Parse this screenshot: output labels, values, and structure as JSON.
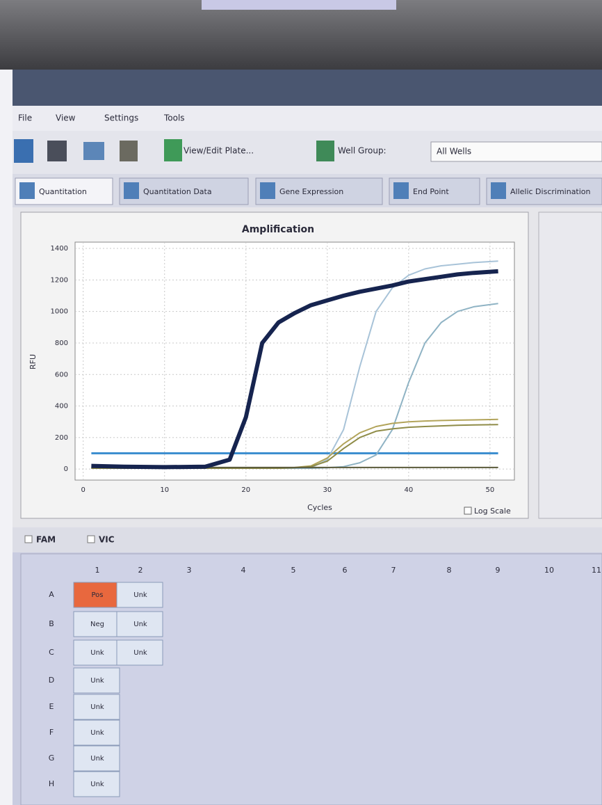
{
  "menu": [
    "File",
    "View",
    "Settings",
    "Tools"
  ],
  "toolbar": {
    "plate_button": "View/Edit Plate...",
    "well_group_label": "Well Group:",
    "well_group_value": "All Wells"
  },
  "tabs": [
    "Quantitation",
    "Quantitation Data",
    "Gene Expression",
    "End Point",
    "Allelic Discrimination"
  ],
  "chart_data": {
    "type": "line",
    "title": "Amplification",
    "x_label": "Cycles",
    "y_label": "RFU",
    "x": [
      1,
      5,
      10,
      15,
      18,
      20,
      22,
      24,
      26,
      28,
      30,
      32,
      34,
      36,
      38,
      40,
      42,
      44,
      46,
      48,
      51
    ],
    "series": [
      {
        "color": "#a8c3d8",
        "values": [
          5,
          5,
          5,
          5,
          5,
          5,
          5,
          5,
          5,
          8,
          60,
          250,
          650,
          1000,
          1150,
          1230,
          1270,
          1290,
          1300,
          1310,
          1320
        ]
      },
      {
        "color": "#8fb3c4",
        "values": [
          5,
          5,
          5,
          5,
          5,
          5,
          5,
          5,
          5,
          5,
          8,
          15,
          40,
          90,
          250,
          550,
          800,
          930,
          1000,
          1030,
          1050
        ]
      },
      {
        "color": "#b2a45a",
        "values": [
          5,
          5,
          5,
          5,
          5,
          5,
          5,
          5,
          10,
          20,
          70,
          160,
          230,
          270,
          290,
          300,
          305,
          308,
          310,
          312,
          315
        ]
      },
      {
        "color": "#8f8c48",
        "values": [
          5,
          5,
          5,
          5,
          5,
          5,
          5,
          5,
          8,
          15,
          50,
          130,
          200,
          240,
          255,
          265,
          270,
          274,
          278,
          280,
          282
        ]
      },
      {
        "color": "#5a5a3a",
        "values": [
          10,
          10,
          10,
          10,
          10,
          10,
          10,
          10,
          10,
          10,
          10,
          10,
          10,
          10,
          10,
          10,
          10,
          10,
          10,
          10,
          10
        ]
      },
      {
        "color": "#16244f",
        "values": [
          20,
          15,
          12,
          15,
          60,
          330,
          800,
          930,
          990,
          1040,
          1070,
          1100,
          1125,
          1145,
          1165,
          1190,
          1205,
          1220,
          1235,
          1245,
          1255
        ]
      }
    ],
    "threshold": 100,
    "threshold_color": "#3e8fd0",
    "xlim": [
      -1,
      53
    ],
    "ylim": [
      -70,
      1440
    ],
    "xticks": [
      0,
      10,
      20,
      30,
      40,
      50
    ],
    "yticks": [
      0,
      200,
      400,
      600,
      800,
      1000,
      1200,
      1400
    ],
    "grid": true,
    "log_scale_label": "Log Scale"
  },
  "fluorophores": [
    "FAM",
    "VIC"
  ],
  "plate": {
    "columns": [
      "1",
      "2",
      "3",
      "4",
      "5",
      "6",
      "7",
      "8",
      "9",
      "10",
      "11"
    ],
    "rows": [
      {
        "label": "A",
        "wells": [
          "Pos",
          "Unk"
        ]
      },
      {
        "label": "B",
        "wells": [
          "Neg",
          "Unk"
        ]
      },
      {
        "label": "C",
        "wells": [
          "Unk",
          "Unk"
        ]
      },
      {
        "label": "D",
        "wells": [
          "Unk"
        ]
      },
      {
        "label": "E",
        "wells": [
          "Unk"
        ]
      },
      {
        "label": "F",
        "wells": [
          "Unk"
        ]
      },
      {
        "label": "G",
        "wells": [
          "Unk"
        ]
      },
      {
        "label": "H",
        "wells": [
          "Unk"
        ]
      }
    ]
  }
}
